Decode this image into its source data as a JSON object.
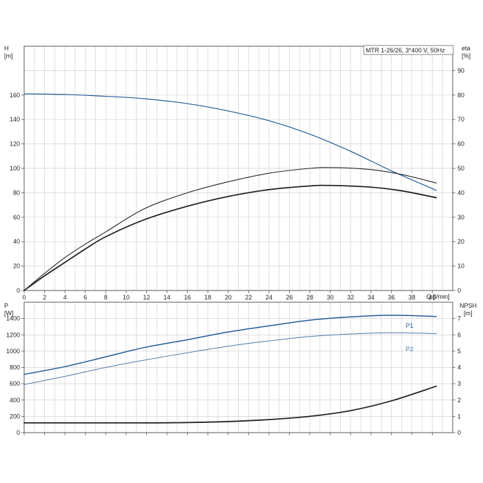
{
  "chart_data": [
    {
      "type": "line",
      "title": "MTR 1-26/26, 3*400 V, 50Hz",
      "xlabel": "Q [l/min]",
      "x_axis": {
        "label": "Q [l/min]",
        "range": [
          0,
          42
        ],
        "ticks": [
          0,
          2,
          4,
          6,
          8,
          10,
          12,
          14,
          16,
          18,
          20,
          22,
          24,
          26,
          28,
          30,
          32,
          34,
          36,
          38,
          40
        ]
      },
      "y_left": {
        "label_top": "H",
        "label_unit": "[m]",
        "range": [
          0,
          200
        ],
        "ticks": [
          0,
          20,
          40,
          60,
          80,
          100,
          120,
          140,
          160
        ]
      },
      "y_right": {
        "label_top": "eta",
        "label_unit": "[%]",
        "range": [
          0,
          100
        ],
        "ticks": [
          0,
          10,
          20,
          30,
          40,
          50,
          60,
          70,
          80,
          90
        ]
      },
      "grid": true,
      "series": [
        {
          "name": "",
          "axis": "left",
          "color": "#1f5a96",
          "width": 1.2,
          "x": [
            0,
            4,
            8,
            11.8,
            16,
            20,
            24,
            28,
            32,
            36,
            40.4
          ],
          "y": [
            161,
            160.5,
            159,
            157,
            153,
            147,
            139,
            128,
            114,
            98,
            82
          ]
        },
        {
          "name": "",
          "axis": "right",
          "color": "#222222",
          "width": 1.1,
          "x": [
            0,
            2,
            4,
            6,
            8,
            11.8,
            16,
            20,
            24,
            28,
            30.5,
            34,
            37,
            40.4
          ],
          "y": [
            0,
            7,
            13.5,
            19,
            24,
            33.5,
            40,
            44.5,
            48,
            50,
            50.3,
            49.5,
            47.5,
            44
          ]
        },
        {
          "name": "",
          "axis": "right",
          "color": "#222222",
          "width": 1.8,
          "x": [
            0,
            2,
            4,
            6,
            8,
            11.8,
            16,
            20,
            24,
            28,
            30,
            34,
            37,
            40.4
          ],
          "y": [
            0,
            6,
            11.5,
            17,
            22,
            29,
            34.5,
            38.5,
            41.3,
            42.8,
            43,
            42.3,
            40.8,
            38
          ]
        }
      ]
    },
    {
      "type": "line",
      "x_axis": {
        "range": [
          0,
          42
        ],
        "ticks": [
          0,
          2,
          4,
          6,
          8,
          10,
          12,
          14,
          16,
          18,
          20,
          22,
          24,
          26,
          28,
          30,
          32,
          34,
          36,
          38,
          40
        ]
      },
      "y_left": {
        "label_top": "P",
        "label_unit": "[W]",
        "range": [
          0,
          1600
        ],
        "ticks": [
          0,
          200,
          400,
          600,
          800,
          1000,
          1200,
          1400
        ]
      },
      "y_right": {
        "label_top": "NPSH",
        "label_unit": "[m]",
        "range": [
          0,
          8
        ],
        "ticks": [
          0,
          1,
          2,
          3,
          4,
          5,
          6,
          7
        ]
      },
      "grid": true,
      "series": [
        {
          "name": "P1",
          "axis": "left",
          "color": "#1f5a96",
          "width": 1.5,
          "x": [
            0,
            4,
            8,
            11.8,
            16,
            20,
            24,
            28,
            32,
            36,
            40.4
          ],
          "y": [
            715,
            810,
            930,
            1045,
            1140,
            1235,
            1310,
            1380,
            1420,
            1440,
            1425
          ]
        },
        {
          "name": "P2",
          "axis": "left",
          "color": "#4a7aa8",
          "width": 1.0,
          "x": [
            0,
            4,
            8,
            11.8,
            16,
            20,
            24,
            28,
            32,
            36,
            40.4
          ],
          "y": [
            590,
            690,
            800,
            890,
            980,
            1060,
            1125,
            1180,
            1210,
            1225,
            1215
          ]
        },
        {
          "name": "",
          "axis": "right",
          "color": "#222222",
          "width": 1.8,
          "x": [
            0,
            11.8,
            16,
            20,
            24,
            28,
            32,
            36,
            40.4
          ],
          "y": [
            0.6,
            0.6,
            0.62,
            0.68,
            0.8,
            1.0,
            1.35,
            1.95,
            2.85
          ]
        }
      ]
    }
  ],
  "legend_labels": {
    "p1": "P1",
    "p2": "P2"
  },
  "texts": {
    "top_title": "MTR 1-26/26, 3*400 V, 50Hz",
    "top_left_label": "H",
    "top_left_unit": "[m]",
    "top_right_label": "eta",
    "top_right_unit": "[%]",
    "x_label": "Q [l/min]",
    "bottom_left_label": "P",
    "bottom_left_unit": "[W]",
    "bottom_right_label": "NPSH",
    "bottom_right_unit": "[m]"
  }
}
